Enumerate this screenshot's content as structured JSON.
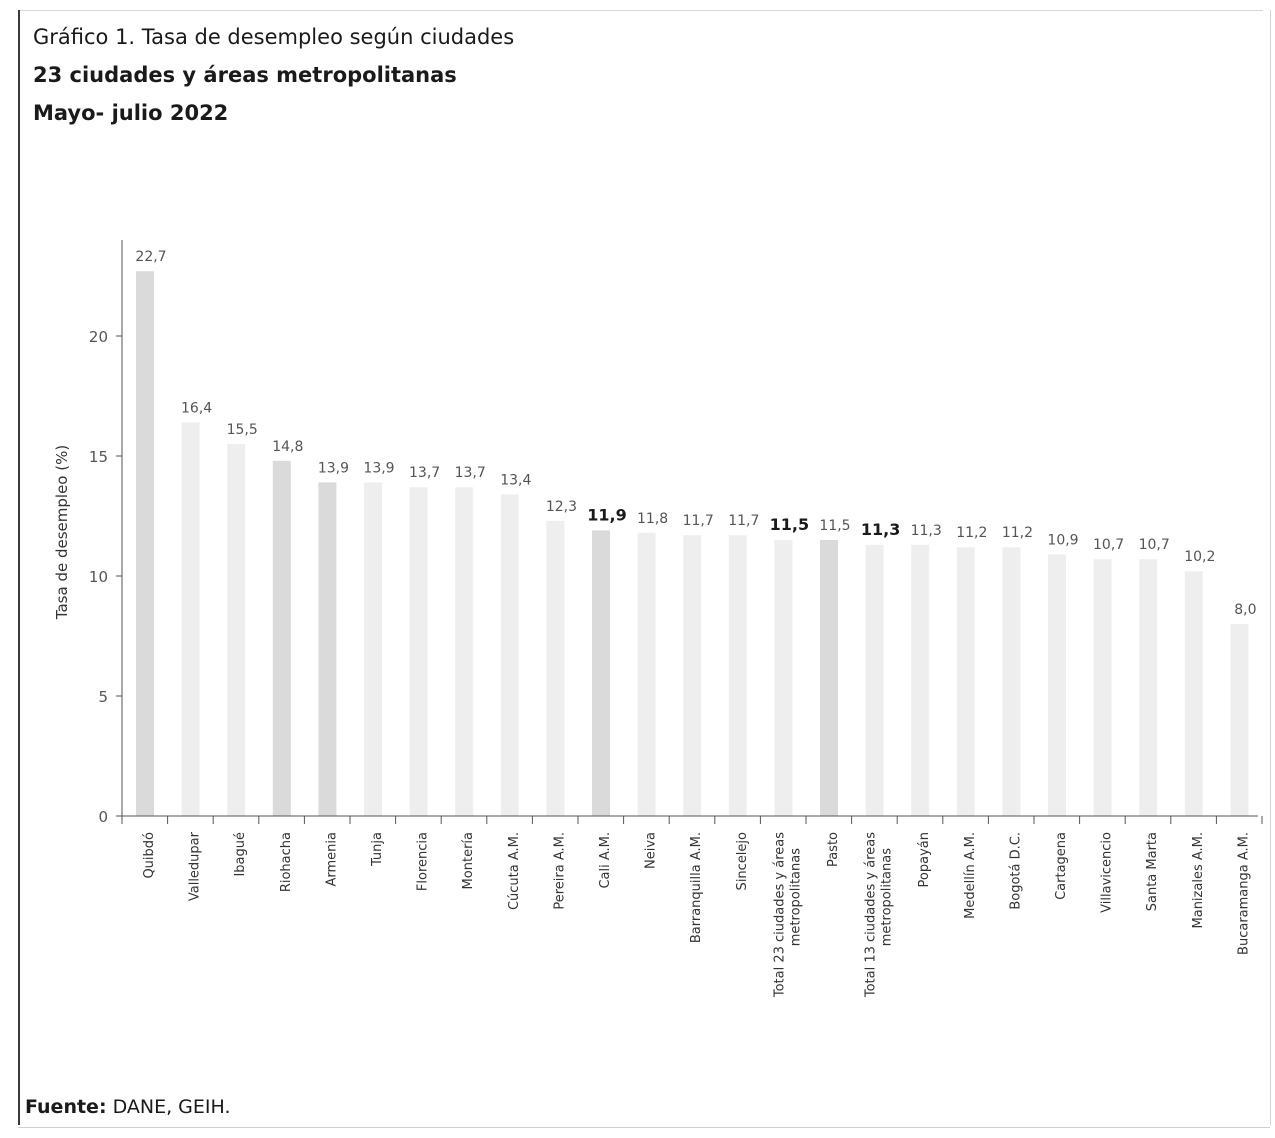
{
  "titles": {
    "line1": "Gráfico 1. Tasa de desempleo según ciudades",
    "line2": "23 ciudades y áreas metropolitanas",
    "line3": "Mayo- julio 2022"
  },
  "source": {
    "label": "Fuente:",
    "text": "DANE, GEIH."
  },
  "chart_data": {
    "type": "bar",
    "ylabel": "Tasa de desempleo (%)",
    "xlabel": "",
    "ylim": [
      0,
      24
    ],
    "yticks": [
      0,
      5,
      10,
      15,
      20
    ],
    "grid": false,
    "categories": [
      "Quibdó",
      "Valledupar",
      "Ibagué",
      "Riohacha",
      "Armenia",
      "Tunja",
      "Florencia",
      "Montería",
      "Cúcuta A.M.",
      "Pereira A.M.",
      "Cali A.M.",
      "Neiva",
      "Barranquilla A.M.",
      "Sincelejo",
      "Total 23 ciudades y áreas metropolitanas",
      "Pasto",
      "Total 13 ciudades y áreas metropolitanas",
      "Popayán",
      "Medellín A.M.",
      "Bogotá D.C.",
      "Cartagena",
      "Villavicencio",
      "Santa Marta",
      "Manizales A.M.",
      "Bucaramanga A.M."
    ],
    "values": [
      22.7,
      16.4,
      15.5,
      14.8,
      13.9,
      13.9,
      13.7,
      13.7,
      13.4,
      12.3,
      11.9,
      11.8,
      11.7,
      11.7,
      11.5,
      11.5,
      11.3,
      11.3,
      11.2,
      11.2,
      10.9,
      10.7,
      10.7,
      10.2,
      8.0
    ],
    "data_labels": [
      "22,7",
      "16,4",
      "15,5",
      "14,8",
      "13,9",
      "13,9",
      "13,7",
      "13,7",
      "13,4",
      "12,3",
      "11,9",
      "11,8",
      "11,7",
      "11,7",
      "11,5",
      "11,5",
      "11,3",
      "11,3",
      "11,2",
      "11,2",
      "10,9",
      "10,7",
      "10,7",
      "10,2",
      "8,0"
    ],
    "bold_labels": [
      10,
      14,
      16
    ],
    "colors": {
      "bar_light": "#eeeeee",
      "bar_medium": "#e2e2e2",
      "bar_highlight": "#dadada",
      "axis": "#555555",
      "label": "#555555",
      "label_bold": "#1a1a1a"
    },
    "highlight_bars": [
      0,
      3,
      4,
      10,
      15
    ]
  }
}
